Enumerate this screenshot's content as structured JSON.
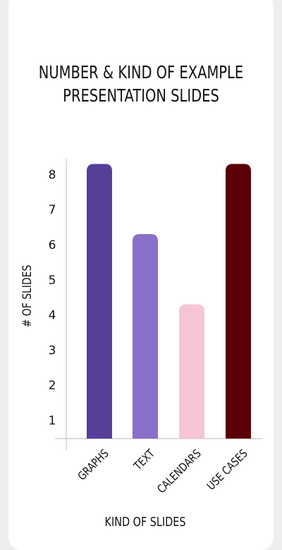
{
  "chart_data": {
    "type": "bar",
    "title": [
      "NUMBER & KIND OF EXAMPLE",
      "PRESENTATION SLIDES"
    ],
    "xlabel": "KIND OF SLIDES",
    "ylabel": "# OF SLIDES",
    "categories": [
      "GRAPHS",
      "TEXT",
      "CALENDARS",
      "USE CASES"
    ],
    "values": [
      8.3,
      6.3,
      4.3,
      8.3
    ],
    "colors": [
      "#573f99",
      "#8a70c8",
      "#f5c5d3",
      "#5a0006"
    ],
    "yticks": [
      "1",
      "2",
      "3",
      "4",
      "5",
      "6",
      "7",
      "8"
    ],
    "ylim": [
      0.5,
      8.5
    ],
    "grid": false,
    "legend": "none"
  }
}
